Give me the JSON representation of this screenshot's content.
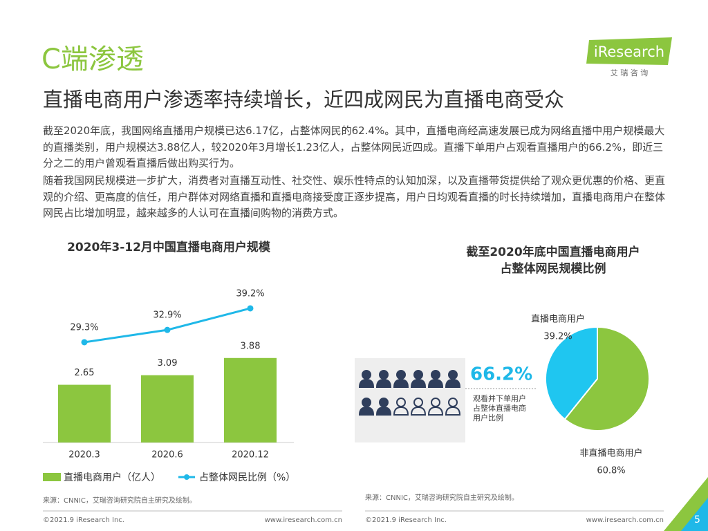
{
  "header": {
    "title": "C端渗透",
    "subtitle": "直播电商用户渗透率持续增长，近四成网民为直播电商受众",
    "logo": "iResearch",
    "logo_sub": "艾 瑞 咨 询"
  },
  "body": [
    "截至2020年底，我国网络直播用户规模已达6.17亿，占整体网民的62.4%。其中，直播电商经高速发展已成为网络直播中用户规模最大的直播类别，用户规模达3.88亿人，较2020年3月增长1.23亿人，占整体网民近四成。直播下单用户占观看直播用户的66.2%，即近三分之二的用户曾观看直播后做出购买行为。",
    "随着我国网民规模进一步扩大，消费者对直播互动性、社交性、娱乐性特点的认知加深，以及直播带货提供给了观众更优惠的价格、更直观的介绍、更高度的信任，用户群体对网络直播和直播电商接受度正逐步提高，用户日均观看直播的时长持续增加，直播电商用户在整体网民占比增加明显，越来越多的人认可在直播间购物的消费方式。"
  ],
  "chart_data": [
    {
      "type": "bar",
      "title": "2020年3-12月中国直播电商用户规模",
      "categories": [
        "2020.3",
        "2020.6",
        "2020.12"
      ],
      "series": [
        {
          "name": "直播电商用户（亿人）",
          "type": "bar",
          "color": "#8cc63f",
          "values": [
            2.65,
            3.09,
            3.88
          ]
        },
        {
          "name": "占整体网民比例（%）",
          "type": "line",
          "axis": "y2",
          "color": "#1fb8e8",
          "values": [
            29.3,
            32.9,
            39.2
          ],
          "value_labels": [
            "29.3%",
            "32.9%",
            "39.2%"
          ]
        }
      ],
      "source": "来源：CNNIC，艾瑞咨询研究院自主研究及绘制。"
    },
    {
      "type": "pie",
      "title": [
        "截至2020年底中国直播电商用户",
        "占整体网民规模比例"
      ],
      "categories": [
        "直播电商用户",
        "非直播电商用户"
      ],
      "values": [
        39.2,
        60.8
      ],
      "value_labels": [
        "39.2%",
        "60.8%"
      ],
      "colors": [
        "#1fc6f0",
        "#8cc63f"
      ],
      "annotation": {
        "value": "66.2%",
        "text": "观看并下单用户占整体直播电商用户比例"
      },
      "source": "来源：CNNIC，艾瑞咨询研究院自主研究及绘制。"
    }
  ],
  "footer": {
    "copyright": "©2021.9 iResearch Inc.",
    "url": "www.iresearch.com.cn",
    "page": "5"
  }
}
